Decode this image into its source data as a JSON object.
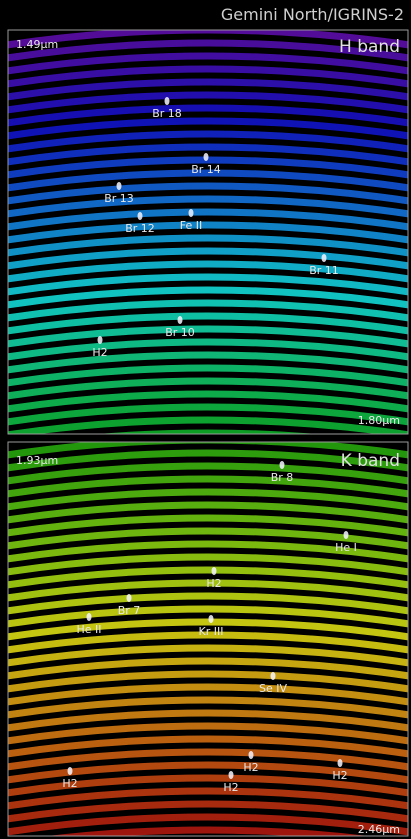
{
  "header": {
    "title": "Gemini North/IGRINS-2"
  },
  "h_panel": {
    "band": "H band",
    "start": "1.49μm",
    "end": "1.80μm",
    "labels": [
      "Br 18",
      "Br 14",
      "Br 13",
      "Br 12",
      "Fe II",
      "Br 11",
      "Br 10",
      "H2"
    ]
  },
  "k_panel": {
    "band": "K band",
    "start": "1.93μm",
    "end": "2.46μm",
    "labels": [
      "Br 8",
      "He I",
      "H2",
      "Br 7",
      "He II",
      "Kr III",
      "Se IV",
      "H2",
      "H2",
      "H2",
      "H2"
    ]
  }
}
